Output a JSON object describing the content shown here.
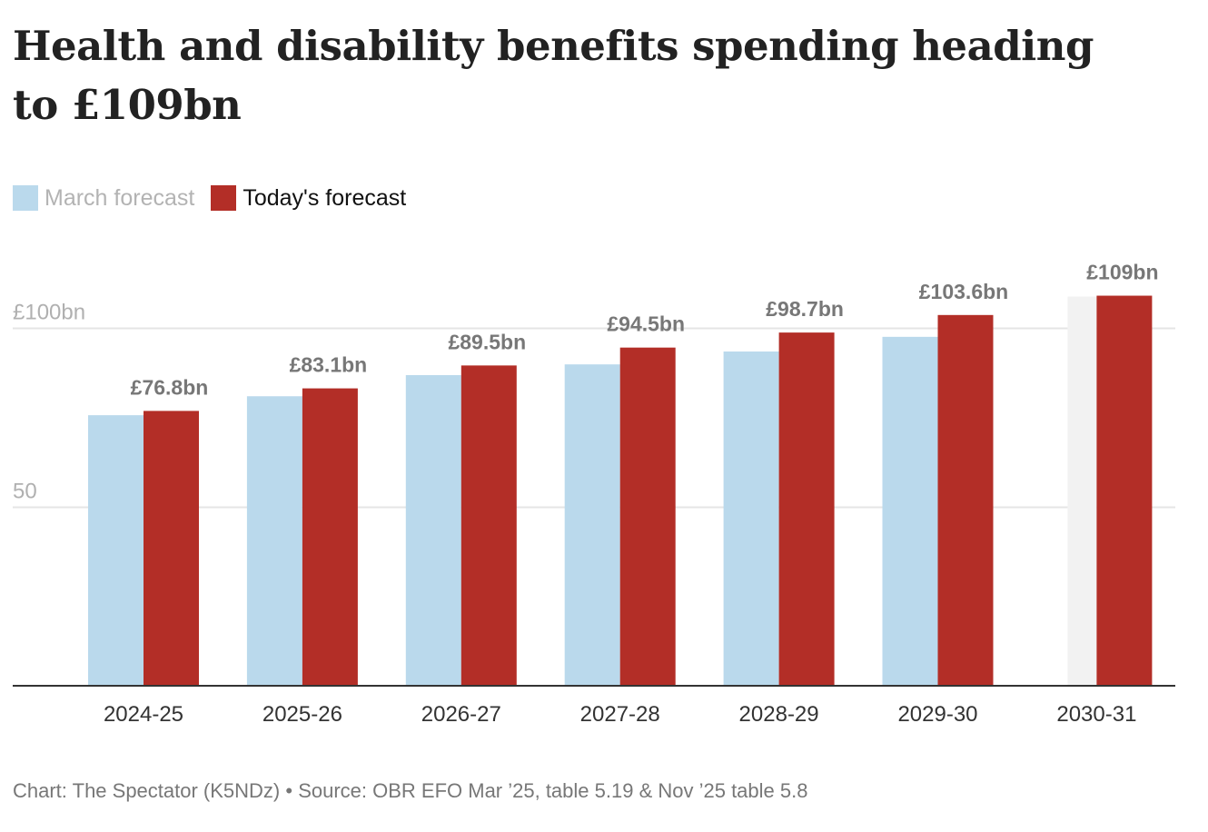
{
  "colors": {
    "march": "#bad9ec",
    "today": "#b32e27",
    "highlight": "#f2f2f2",
    "grid": "#e5e5e5",
    "baseline": "#333333",
    "value_label": "#777777"
  },
  "legend": {
    "items": [
      {
        "label": "March forecast",
        "color": "#bad9ec"
      },
      {
        "label": "Today's forecast",
        "color": "#b32e27"
      }
    ]
  },
  "footer": {
    "text": "Chart: The Spectator (K5NDz) • Source: OBR EFO Mar ’25, table 5.19 & Nov ’25 table 5.8"
  },
  "chart_data": {
    "type": "bar",
    "title": "Health and disability benefits spending heading to £109bn",
    "xlabel": "",
    "ylabel": "",
    "ylim": [
      0,
      100
    ],
    "y_ticks": [
      {
        "value": 100,
        "label": "£100bn"
      },
      {
        "value": 50,
        "label": "50"
      }
    ],
    "grid": true,
    "legend_position": "top-left",
    "categories": [
      "2024-25",
      "2025-26",
      "2026-27",
      "2027-28",
      "2028-29",
      "2029-30",
      "2030-31"
    ],
    "series": [
      {
        "name": "March forecast",
        "values": [
          75.6,
          80.9,
          86.8,
          89.8,
          93.4,
          97.5,
          null
        ]
      },
      {
        "name": "Today's forecast",
        "values": [
          76.8,
          83.1,
          89.5,
          94.5,
          98.7,
          103.6,
          109
        ]
      }
    ],
    "data_labels": [
      "£76.8bn",
      "£83.1bn",
      "£89.5bn",
      "£94.5bn",
      "£98.7bn",
      "£103.6bn",
      "£109bn"
    ],
    "highlighted_category": "2030-31"
  }
}
